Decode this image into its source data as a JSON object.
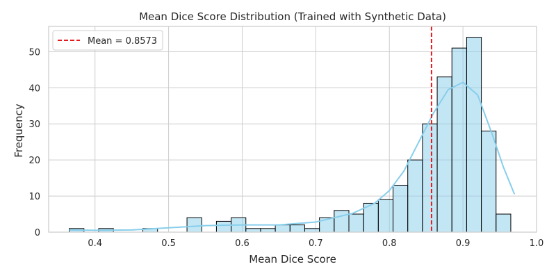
{
  "chart_data": {
    "type": "bar",
    "title": "Mean Dice Score Distribution (Trained with Synthetic Data)",
    "xlabel": "Mean Dice Score",
    "ylabel": "Frequency",
    "xlim": [
      0.337,
      1.0
    ],
    "ylim": [
      0,
      57
    ],
    "xticks": [
      "0.4",
      "0.5",
      "0.6",
      "0.7",
      "0.8",
      "0.9",
      "1.0"
    ],
    "xtick_values": [
      0.4,
      0.5,
      0.6,
      0.7,
      0.8,
      0.9,
      1.0
    ],
    "yticks": [
      "0",
      "10",
      "20",
      "30",
      "40",
      "50"
    ],
    "ytick_values": [
      0,
      10,
      20,
      30,
      40,
      50
    ],
    "grid": true,
    "bin_edges": [
      0.365,
      0.385,
      0.405,
      0.425,
      0.445,
      0.465,
      0.485,
      0.505,
      0.525,
      0.545,
      0.565,
      0.585,
      0.605,
      0.625,
      0.645,
      0.665,
      0.685,
      0.705,
      0.725,
      0.745,
      0.765,
      0.785,
      0.805,
      0.825,
      0.845,
      0.865,
      0.885,
      0.905,
      0.925,
      0.945,
      0.965
    ],
    "counts": [
      1,
      0,
      1,
      0,
      0,
      1,
      0,
      0,
      4,
      0,
      3,
      4,
      1,
      1,
      2,
      2,
      1,
      4,
      6,
      5,
      8,
      9,
      13,
      20,
      30,
      43,
      51,
      54,
      28,
      5
    ],
    "kde": {
      "x": [
        0.365,
        0.4,
        0.45,
        0.5,
        0.55,
        0.6,
        0.65,
        0.7,
        0.75,
        0.78,
        0.8,
        0.82,
        0.84,
        0.86,
        0.88,
        0.9,
        0.92,
        0.94,
        0.955,
        0.97
      ],
      "y": [
        0.6,
        0.5,
        0.6,
        1.2,
        1.8,
        2.0,
        2.0,
        2.8,
        5.2,
        8.0,
        11.5,
        17.0,
        25.0,
        33.0,
        39.5,
        41.5,
        38.0,
        27.0,
        18.0,
        10.5
      ],
      "color": "#87ceeb"
    },
    "mean_line": {
      "x": 0.8573,
      "label": "Mean = 0.8573",
      "color": "#e41a1c"
    },
    "legend_position": "top-left",
    "bar_color": "#87ceeb"
  }
}
